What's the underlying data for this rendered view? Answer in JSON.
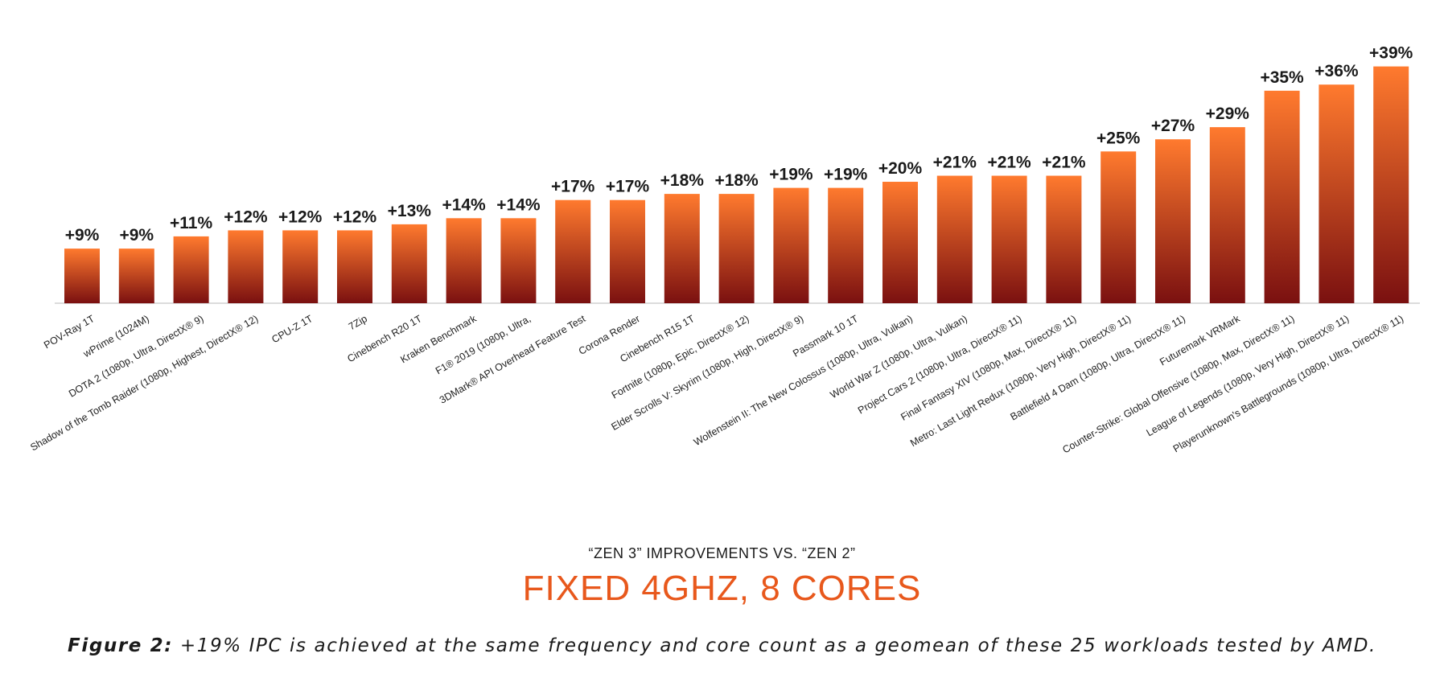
{
  "chart_data": {
    "type": "bar",
    "title": "FIXED 4GHZ, 8 CORES",
    "subtitle": "“ZEN 3” IMPROVEMENTS VS. “ZEN 2”",
    "xlabel": "",
    "ylabel": "",
    "ylim": [
      0,
      40
    ],
    "grid": false,
    "categories": [
      "POV-Ray 1T",
      "wPrime (1024M)",
      "DOTA 2 (1080p, Ultra, DirectX® 9)",
      "Shadow of the Tomb Raider (1080p, Highest, DirectX® 12)",
      "CPU-Z 1T",
      "7Zip",
      "Cinebench R20 1T",
      "Kraken Benchmark",
      "F1® 2019 (1080p, Ultra,",
      "3DMark® API Overhead Feature Test",
      "Corona Render",
      "Cinebench R15 1T",
      "Fortnite (1080p, Epic, DirectX® 12)",
      "Elder Scrolls V: Skyrim (1080p, High, DirectX® 9)",
      "Passmark 10 1T",
      "Wolfenstein II: The New Colossus (1080p, Ultra, Vulkan)",
      "World War Z (1080p, Ultra, Vulkan)",
      "Project Cars 2 (1080p, Ultra, DirectX® 11)",
      "Final Fantasy XIV (1080p, Max, DirectX® 11)",
      "Metro: Last Light Redux (1080p, Very High, DirectX® 11)",
      "Battlefield 4 Dam (1080p, Ultra, DirectX® 11)",
      "Futuremark VRMark",
      "Counter-Strike: Global Offensive (1080p, Max, DirectX® 11)",
      "League of Legends (1080p, Very High, DirectX® 11)",
      "Playerunknown's Battlegrounds (1080p, Ultra, DirectX® 11)"
    ],
    "values": [
      9,
      9,
      11,
      12,
      12,
      12,
      13,
      14,
      14,
      17,
      17,
      18,
      18,
      19,
      19,
      20,
      21,
      21,
      21,
      25,
      27,
      29,
      35,
      36,
      39
    ],
    "value_labels": [
      "+9%",
      "+9%",
      "+11%",
      "+12%",
      "+12%",
      "+12%",
      "+13%",
      "+14%",
      "+14%",
      "+17%",
      "+17%",
      "+18%",
      "+18%",
      "+19%",
      "+19%",
      "+20%",
      "+21%",
      "+21%",
      "+21%",
      "+25%",
      "+27%",
      "+29%",
      "+35%",
      "+36%",
      "+39%"
    ],
    "bar_gradient": [
      "#ff7a2e",
      "#7a1010"
    ]
  },
  "caption": {
    "label": "Figure 2:",
    "text": " +19% IPC is achieved at the same frequency and core count as a geomean of these 25 workloads tested by AMD."
  }
}
